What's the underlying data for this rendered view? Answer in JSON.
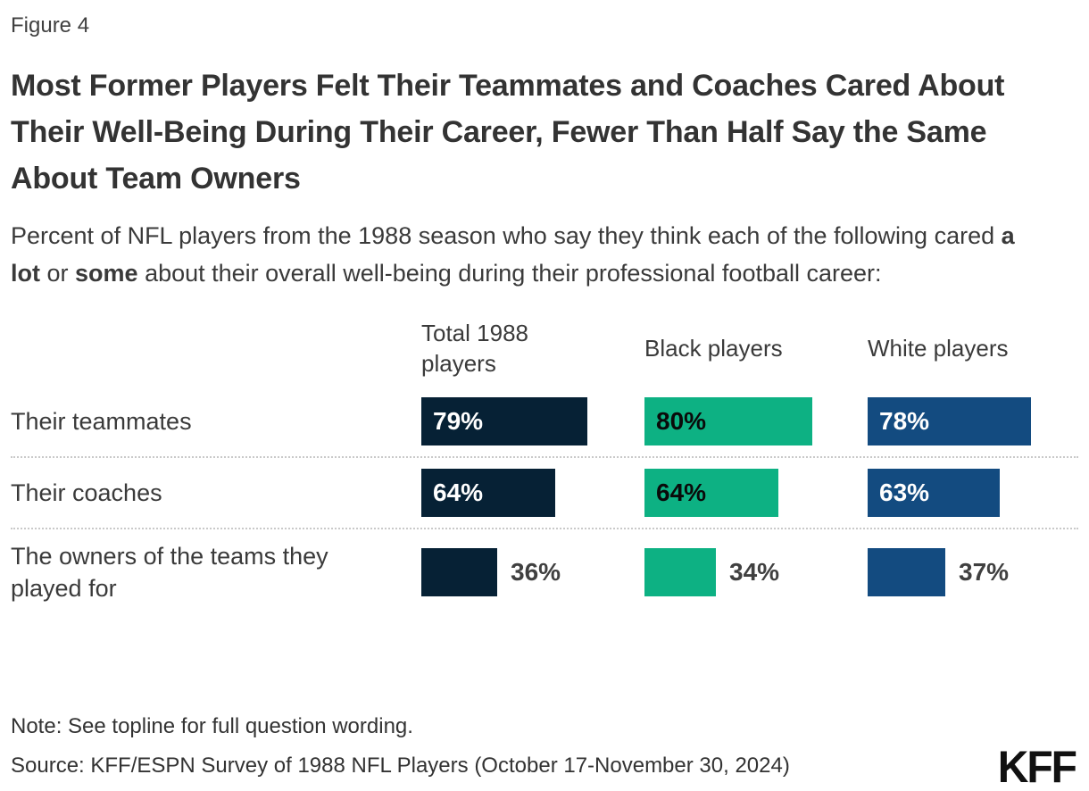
{
  "figure_label": "Figure 4",
  "title": "Most Former Players Felt Their Teammates and Coaches Cared About Their Well-Being During Their Career, Fewer Than Half Say the Same About Team Owners",
  "subtitle": {
    "prefix": "Percent of NFL players from the 1988 season who say they think each of the following cared ",
    "bold1": "a lot",
    "middle": " or ",
    "bold2": "some",
    "suffix": " about their overall well-being during their professional football career:"
  },
  "chart_data": {
    "type": "bar",
    "orientation": "horizontal",
    "title": "Most Former Players Felt Their Teammates and Coaches Cared About Their Well-Being During Their Career, Fewer Than Half Say the Same About Team Owners",
    "categories": [
      "Their teammates",
      "Their coaches",
      "The owners of the teams they played for"
    ],
    "series": [
      {
        "name": "Total 1988 players",
        "color": "#062135",
        "values": [
          79,
          64,
          36
        ]
      },
      {
        "name": "Black players",
        "color": "#0DB183",
        "values": [
          80,
          64,
          34
        ]
      },
      {
        "name": "White players",
        "color": "#134B80",
        "values": [
          78,
          63,
          37
        ]
      }
    ],
    "value_labels": [
      [
        "79%",
        "80%",
        "78%"
      ],
      [
        "64%",
        "64%",
        "63%"
      ],
      [
        "36%",
        "34%",
        "37%"
      ]
    ],
    "value_format": "percent",
    "xlim": [
      0,
      100
    ],
    "grid": false,
    "legend_position": "column-headers"
  },
  "note": "Note: See topline for full question wording.",
  "source": "Source: KFF/ESPN Survey of 1988 NFL Players (October 17-November 30, 2024)",
  "logo_text": "KFF"
}
